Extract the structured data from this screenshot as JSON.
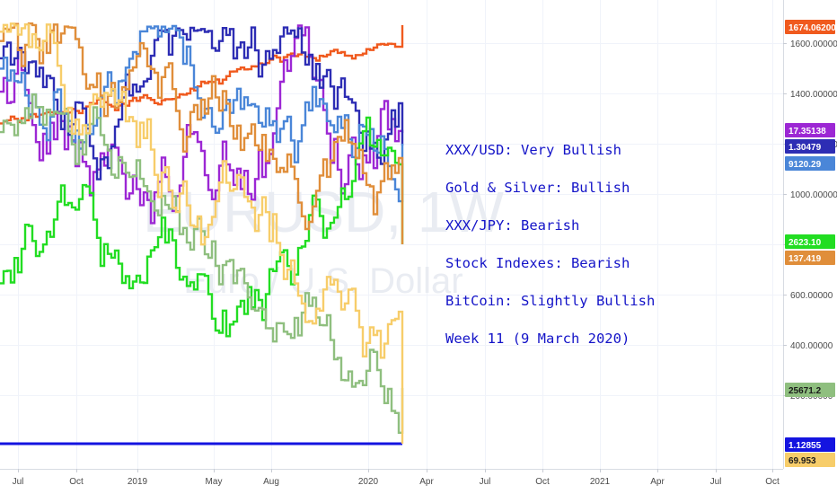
{
  "chart_data": {
    "type": "line",
    "watermark": {
      "symbol": "EURUSD, 1W",
      "description": "Euro / U.S. Dollar"
    },
    "y_axis": {
      "position": "right",
      "ticks": [
        "1600.00000",
        "1400.00000",
        "1200.00000",
        "1000.00000",
        "800.00000",
        "600.00000",
        "400.00000",
        "200.00000"
      ]
    },
    "x_axis": {
      "ticks": [
        "Jul",
        "Oct",
        "2019",
        "May",
        "Aug",
        "2020",
        "Apr",
        "Jul",
        "Oct",
        "2021",
        "Apr",
        "Jul",
        "Oct"
      ]
    },
    "price_badges": [
      {
        "label": "1674.06200",
        "color": "#f05a1e",
        "text_color": "#ffffff"
      },
      {
        "label": "17.35138",
        "color": "#9c27d4",
        "text_color": "#ffffff"
      },
      {
        "label": "1.30479",
        "color": "#2d2db4",
        "text_color": "#ffffff"
      },
      {
        "label": "9120.29",
        "color": "#4a86d8",
        "text_color": "#ffffff"
      },
      {
        "label": "2623.10",
        "color": "#22dd22",
        "text_color": "#ffffff"
      },
      {
        "label": "137.419",
        "color": "#e08e3a",
        "text_color": "#ffffff"
      },
      {
        "label": "25671.2",
        "color": "#8fbf7f",
        "text_color": "#1a1a1a"
      },
      {
        "label": "1.12855",
        "color": "#1414e0",
        "text_color": "#ffffff"
      },
      {
        "label": "69.953",
        "color": "#f7cd6a",
        "text_color": "#1a1a1a"
      }
    ],
    "series": [
      {
        "color": "#f05a1e",
        "last": 1674.062
      },
      {
        "color": "#9c27d4",
        "last": 17.35138
      },
      {
        "color": "#2d2db4",
        "last": 1.30479
      },
      {
        "color": "#4a86d8",
        "last": 9120.29
      },
      {
        "color": "#22dd22",
        "last": 2623.1
      },
      {
        "color": "#e08e3a",
        "last": 137.419
      },
      {
        "color": "#8fbf7f",
        "last": 25671.2
      },
      {
        "color": "#1414e0",
        "last": 1.12855
      },
      {
        "color": "#f7cd6a",
        "last": 69.953
      }
    ],
    "annotations": [
      "XXX/USD: Very Bullish",
      "Gold & Silver: Bullish",
      "XXX/JPY: Bearish",
      "Stock Indexes:  Bearish",
      "BitCoin: Slightly Bullish",
      "Week 11 (9 March 2020)"
    ],
    "annotation_color": "#1414c8"
  }
}
